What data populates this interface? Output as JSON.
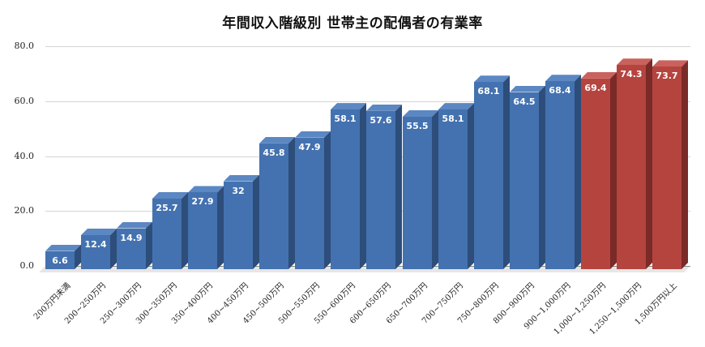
{
  "chart_data": {
    "type": "bar",
    "title": "年間収入階級別 世帯主の配偶者の有業率",
    "xlabel": "",
    "ylabel": "",
    "ylim": [
      0,
      80
    ],
    "yticks": [
      "0.0",
      "20.0",
      "40.0",
      "60.0",
      "80.0"
    ],
    "grid": true,
    "style": "3d-column",
    "categories": [
      "200万円未満",
      "200~250万円",
      "250~300万円",
      "300~350万円",
      "350~400万円",
      "400~450万円",
      "450~500万円",
      "500~550万円",
      "550~600万円",
      "600~650万円",
      "650~700万円",
      "700~750万円",
      "750~800万円",
      "800~900万円",
      "900~1,000万円",
      "1,000~1,250万円",
      "1,250~1,500万円",
      "1,500万円以上"
    ],
    "values": [
      6.6,
      12.4,
      14.9,
      25.7,
      27.9,
      32,
      45.8,
      47.9,
      58.1,
      57.6,
      55.5,
      58.1,
      68.1,
      64.5,
      68.4,
      69.4,
      74.3,
      73.7
    ],
    "value_labels": [
      "6.6",
      "12.4",
      "14.9",
      "25.7",
      "27.9",
      "32",
      "45.8",
      "47.9",
      "58.1",
      "57.6",
      "55.5",
      "58.1",
      "68.1",
      "64.5",
      "68.4",
      "69.4",
      "74.3",
      "73.7"
    ],
    "bar_colors": [
      "#4472b0",
      "#4472b0",
      "#4472b0",
      "#4472b0",
      "#4472b0",
      "#4472b0",
      "#4472b0",
      "#4472b0",
      "#4472b0",
      "#4472b0",
      "#4472b0",
      "#4472b0",
      "#4472b0",
      "#4472b0",
      "#4472b0",
      "#b5443f",
      "#b5443f",
      "#b5443f"
    ]
  },
  "colors": {
    "blue_front": "#4472b0",
    "blue_side": "#2d4d7a",
    "blue_top": "#5b87c2",
    "red_front": "#b5443f",
    "red_side": "#7a2a27",
    "red_top": "#c9625d",
    "floor": "#e6e6e6",
    "axis_line": "#888888"
  }
}
